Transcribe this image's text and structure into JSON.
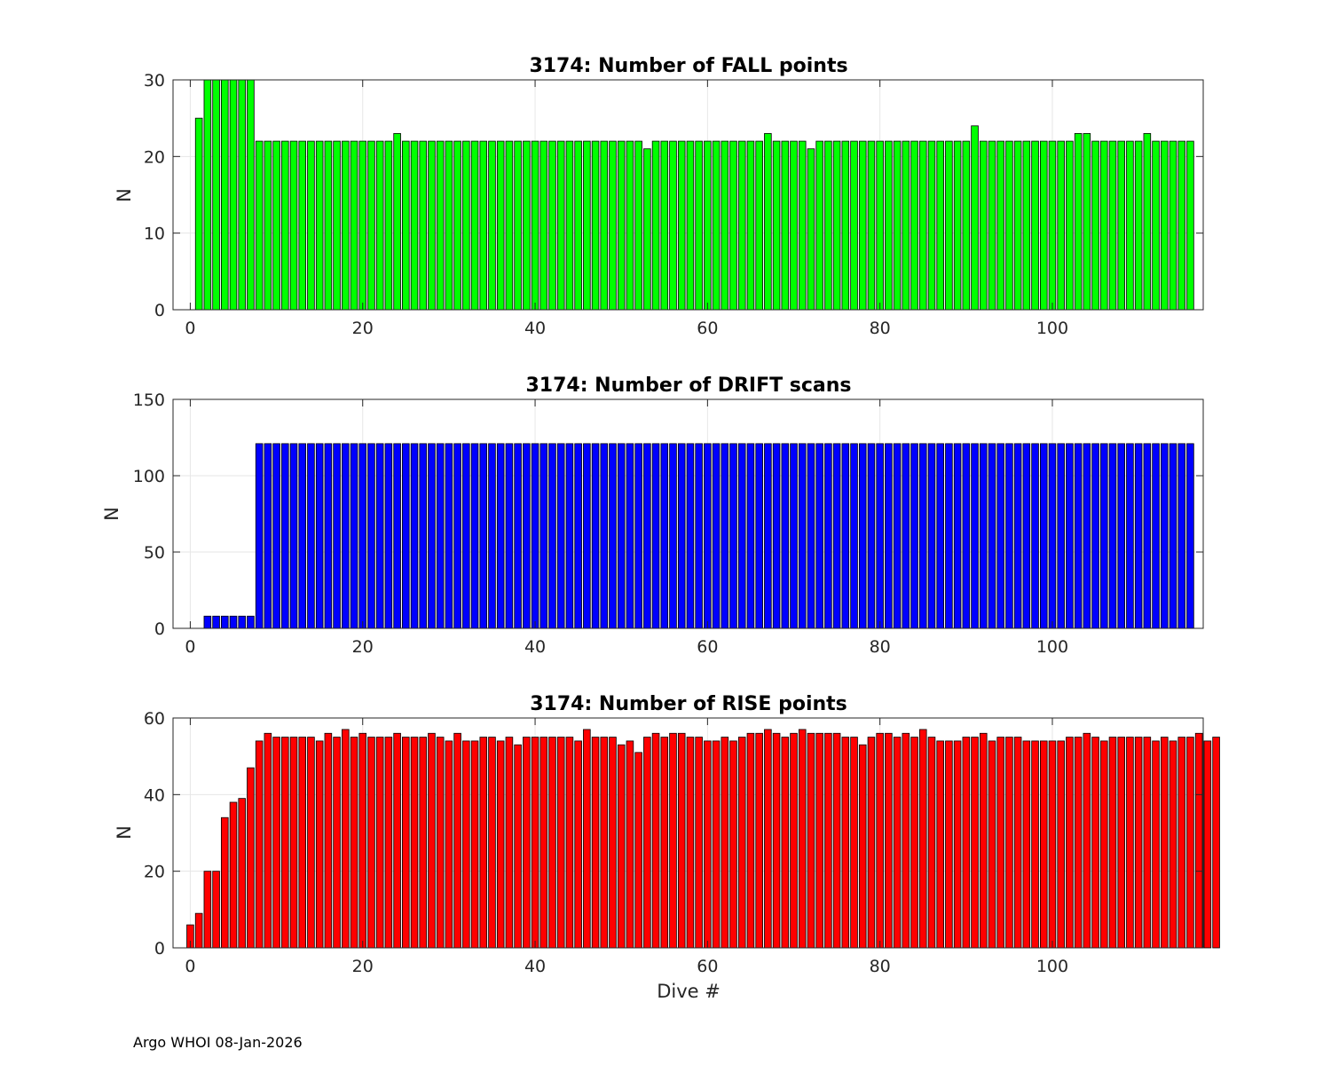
{
  "footer": "Argo WHOI 08-Jan-2026",
  "chart_data": [
    {
      "type": "bar",
      "title": "3174: Number of FALL points",
      "xlabel": "",
      "ylabel": "N",
      "color": "#00ff00",
      "xlim": [
        -2,
        117.5
      ],
      "ylim": [
        0,
        30
      ],
      "xticks": [
        0,
        20,
        40,
        60,
        80,
        100
      ],
      "yticks": [
        0,
        10,
        20,
        30
      ],
      "grid": true,
      "x_start": 0,
      "values": [
        0,
        25,
        30,
        30,
        30,
        30,
        30,
        30,
        22,
        22,
        22,
        22,
        22,
        22,
        22,
        22,
        22,
        22,
        22,
        22,
        22,
        22,
        22,
        22,
        23,
        22,
        22,
        22,
        22,
        22,
        22,
        22,
        22,
        22,
        22,
        22,
        22,
        22,
        22,
        22,
        22,
        22,
        22,
        22,
        22,
        22,
        22,
        22,
        22,
        22,
        22,
        22,
        22,
        21,
        22,
        22,
        22,
        22,
        22,
        22,
        22,
        22,
        22,
        22,
        22,
        22,
        22,
        23,
        22,
        22,
        22,
        22,
        21,
        22,
        22,
        22,
        22,
        22,
        22,
        22,
        22,
        22,
        22,
        22,
        22,
        22,
        22,
        22,
        22,
        22,
        22,
        24,
        22,
        22,
        22,
        22,
        22,
        22,
        22,
        22,
        22,
        22,
        22,
        23,
        23,
        22,
        22,
        22,
        22,
        22,
        22,
        23,
        22,
        22,
        22,
        22,
        22
      ]
    },
    {
      "type": "bar",
      "title": "3174: Number of DRIFT scans",
      "xlabel": "",
      "ylabel": "N",
      "color": "#0000ff",
      "xlim": [
        -2,
        117.5
      ],
      "ylim": [
        0,
        150
      ],
      "xticks": [
        0,
        20,
        40,
        60,
        80,
        100
      ],
      "yticks": [
        0,
        50,
        100,
        150
      ],
      "grid": true,
      "x_start": 0,
      "values": [
        0,
        0,
        8,
        8,
        8,
        8,
        8,
        8,
        121,
        121,
        121,
        121,
        121,
        121,
        121,
        121,
        121,
        121,
        121,
        121,
        121,
        121,
        121,
        121,
        121,
        121,
        121,
        121,
        121,
        121,
        121,
        121,
        121,
        121,
        121,
        121,
        121,
        121,
        121,
        121,
        121,
        121,
        121,
        121,
        121,
        121,
        121,
        121,
        121,
        121,
        121,
        121,
        121,
        121,
        121,
        121,
        121,
        121,
        121,
        121,
        121,
        121,
        121,
        121,
        121,
        121,
        121,
        121,
        121,
        121,
        121,
        121,
        121,
        121,
        121,
        121,
        121,
        121,
        121,
        121,
        121,
        121,
        121,
        121,
        121,
        121,
        121,
        121,
        121,
        121,
        121,
        121,
        121,
        121,
        121,
        121,
        121,
        121,
        121,
        121,
        121,
        121,
        121,
        121,
        121,
        121,
        121,
        121,
        121,
        121,
        121,
        121,
        121,
        121,
        121,
        121,
        121
      ]
    },
    {
      "type": "bar",
      "title": "3174: Number of RISE points",
      "xlabel": "Dive #",
      "ylabel": "N",
      "color": "#ff0000",
      "xlim": [
        -2,
        117.5
      ],
      "ylim": [
        0,
        60
      ],
      "xticks": [
        0,
        20,
        40,
        60,
        80,
        100
      ],
      "yticks": [
        0,
        20,
        40,
        60
      ],
      "grid": true,
      "x_start": 0,
      "values": [
        6,
        9,
        20,
        20,
        34,
        38,
        39,
        47,
        54,
        56,
        55,
        55,
        55,
        55,
        55,
        54,
        56,
        55,
        57,
        55,
        56,
        55,
        55,
        55,
        56,
        55,
        55,
        55,
        56,
        55,
        54,
        56,
        54,
        54,
        55,
        55,
        54,
        55,
        53,
        55,
        55,
        55,
        55,
        55,
        55,
        54,
        57,
        55,
        55,
        55,
        53,
        54,
        51,
        55,
        56,
        55,
        56,
        56,
        55,
        55,
        54,
        54,
        55,
        54,
        55,
        56,
        56,
        57,
        56,
        55,
        56,
        57,
        56,
        56,
        56,
        56,
        55,
        55,
        53,
        55,
        56,
        56,
        55,
        56,
        55,
        57,
        55,
        54,
        54,
        54,
        55,
        55,
        56,
        54,
        55,
        55,
        55,
        54,
        54,
        54,
        54,
        54,
        55,
        55,
        56,
        55,
        54,
        55,
        55,
        55,
        55,
        55,
        54,
        55,
        54,
        55,
        55,
        56,
        54,
        55
      ]
    }
  ]
}
